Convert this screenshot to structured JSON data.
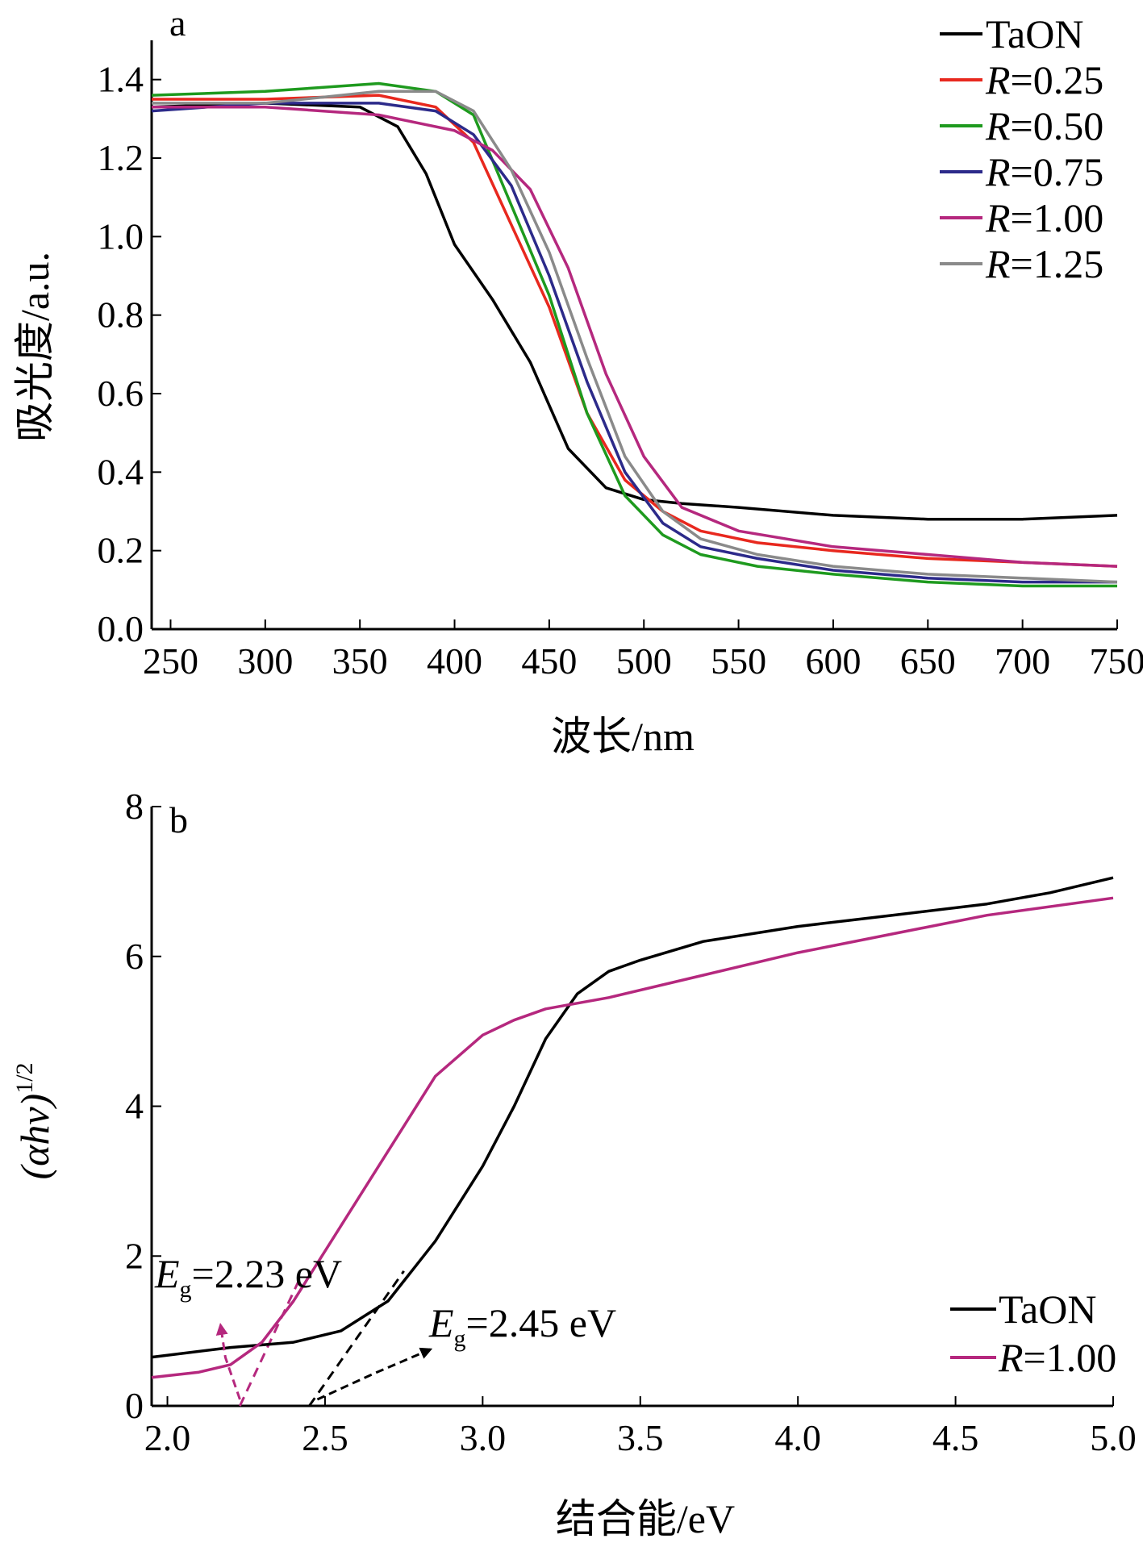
{
  "chart_data": [
    {
      "panel_label": "a",
      "type": "line",
      "xlabel": "波长/nm",
      "ylabel": "吸光度/a.u.",
      "xlim": [
        240,
        750
      ],
      "ylim": [
        0,
        1.5
      ],
      "x_ticks": [
        "250",
        "300",
        "350",
        "400",
        "450",
        "500",
        "550",
        "600",
        "650",
        "700",
        "750"
      ],
      "y_ticks": [
        "0.0",
        "0.2",
        "0.4",
        "0.6",
        "0.8",
        "1.0",
        "1.2",
        "1.4"
      ],
      "legend_position": "top-right",
      "series": [
        {
          "name": "TaON",
          "color": "#000000",
          "x": [
            240,
            300,
            350,
            370,
            385,
            400,
            420,
            440,
            460,
            480,
            500,
            520,
            550,
            600,
            650,
            700,
            750
          ],
          "y": [
            1.33,
            1.34,
            1.33,
            1.28,
            1.16,
            0.98,
            0.84,
            0.68,
            0.46,
            0.36,
            0.33,
            0.32,
            0.31,
            0.29,
            0.28,
            0.28,
            0.29
          ]
        },
        {
          "name": "R=0.25",
          "color": "#e8281e",
          "x": [
            240,
            300,
            360,
            390,
            410,
            430,
            450,
            470,
            490,
            510,
            530,
            560,
            600,
            650,
            700,
            750
          ],
          "y": [
            1.35,
            1.35,
            1.36,
            1.33,
            1.24,
            1.03,
            0.82,
            0.55,
            0.38,
            0.3,
            0.25,
            0.22,
            0.2,
            0.18,
            0.17,
            0.16
          ]
        },
        {
          "name": "R=0.50",
          "color": "#1e9a1e",
          "x": [
            240,
            300,
            360,
            390,
            410,
            430,
            450,
            470,
            490,
            510,
            530,
            560,
            600,
            650,
            700,
            750
          ],
          "y": [
            1.36,
            1.37,
            1.39,
            1.37,
            1.31,
            1.08,
            0.85,
            0.55,
            0.34,
            0.24,
            0.19,
            0.16,
            0.14,
            0.12,
            0.11,
            0.11
          ]
        },
        {
          "name": "R=0.75",
          "color": "#2c2a8a",
          "x": [
            240,
            300,
            360,
            390,
            410,
            430,
            450,
            470,
            490,
            510,
            530,
            560,
            600,
            650,
            700,
            750
          ],
          "y": [
            1.32,
            1.34,
            1.34,
            1.32,
            1.26,
            1.13,
            0.9,
            0.63,
            0.4,
            0.27,
            0.21,
            0.18,
            0.15,
            0.13,
            0.12,
            0.12
          ]
        },
        {
          "name": "R=1.00",
          "color": "#b5287e",
          "x": [
            240,
            300,
            360,
            380,
            400,
            420,
            440,
            460,
            480,
            500,
            520,
            550,
            600,
            650,
            700,
            750
          ],
          "y": [
            1.33,
            1.33,
            1.31,
            1.29,
            1.27,
            1.22,
            1.12,
            0.92,
            0.65,
            0.44,
            0.31,
            0.25,
            0.21,
            0.19,
            0.17,
            0.16
          ]
        },
        {
          "name": "R=1.25",
          "color": "#8a8a8a",
          "x": [
            240,
            300,
            360,
            390,
            410,
            430,
            450,
            470,
            490,
            510,
            530,
            560,
            600,
            650,
            700,
            750
          ],
          "y": [
            1.34,
            1.34,
            1.37,
            1.37,
            1.32,
            1.17,
            0.96,
            0.69,
            0.44,
            0.3,
            0.23,
            0.19,
            0.16,
            0.14,
            0.13,
            0.12
          ]
        }
      ]
    },
    {
      "panel_label": "b",
      "type": "line",
      "xlabel": "结合能/eV",
      "ylabel": "(αhν)",
      "ylabel_exp": "1/2",
      "xlim": [
        1.95,
        5.0
      ],
      "ylim": [
        0,
        8
      ],
      "x_ticks": [
        "2.0",
        "2.5",
        "3.0",
        "3.5",
        "4.0",
        "4.5",
        "5.0"
      ],
      "y_ticks": [
        "0",
        "2",
        "4",
        "6",
        "8"
      ],
      "legend_position": "bottom-right",
      "series": [
        {
          "name": "TaON",
          "color": "#000000",
          "x": [
            1.95,
            2.2,
            2.4,
            2.55,
            2.7,
            2.85,
            3.0,
            3.1,
            3.2,
            3.3,
            3.4,
            3.5,
            3.7,
            4.0,
            4.3,
            4.6,
            4.8,
            5.0
          ],
          "y": [
            0.65,
            0.78,
            0.85,
            1.0,
            1.4,
            2.2,
            3.2,
            4.0,
            4.9,
            5.5,
            5.8,
            5.95,
            6.2,
            6.4,
            6.55,
            6.7,
            6.85,
            7.05
          ]
        },
        {
          "name": "R=1.00",
          "color": "#b5287e",
          "x": [
            1.95,
            2.1,
            2.2,
            2.3,
            2.4,
            2.55,
            2.7,
            2.85,
            3.0,
            3.1,
            3.2,
            3.4,
            3.7,
            4.0,
            4.3,
            4.6,
            5.0
          ],
          "y": [
            0.38,
            0.45,
            0.55,
            0.85,
            1.4,
            2.4,
            3.4,
            4.4,
            4.95,
            5.15,
            5.3,
            5.45,
            5.75,
            6.05,
            6.3,
            6.55,
            6.78
          ]
        }
      ],
      "annotations": [
        {
          "label": "E",
          "subscript": "g",
          "value_text": "=2.23 eV",
          "color": "#b5287e"
        },
        {
          "label": "E",
          "subscript": "g",
          "value_text": "=2.45 eV",
          "color": "#000000"
        }
      ],
      "fit_lines": [
        {
          "color": "#b5287e",
          "x": [
            2.23,
            2.42
          ],
          "y": [
            0,
            1.7
          ]
        },
        {
          "color": "#000000",
          "x": [
            2.45,
            2.75
          ],
          "y": [
            0,
            1.8
          ]
        }
      ]
    }
  ]
}
